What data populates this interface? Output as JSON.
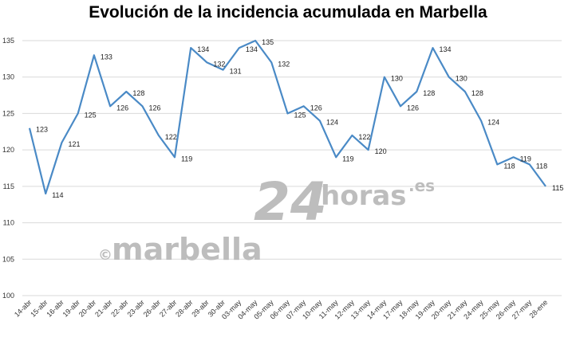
{
  "chart_data": {
    "type": "line",
    "title": "Evolución de la incidencia acumulada en Marbella",
    "xlabel": "",
    "ylabel": "",
    "ylim": [
      100,
      135
    ],
    "yticks": [
      100,
      105,
      110,
      115,
      120,
      125,
      130,
      135
    ],
    "grid": true,
    "legend": "none",
    "line_color": "#4a8ac6",
    "categories": [
      "14-abr",
      "15-abr",
      "16-abr",
      "19-abr",
      "20-abr",
      "21-abr",
      "22-abr",
      "23-abr",
      "26-abr",
      "27-abr",
      "28-abr",
      "29-abr",
      "30-abr",
      "03-may",
      "04-may",
      "05-may",
      "06-may",
      "07-may",
      "10-may",
      "11-may",
      "12-may",
      "13-may",
      "14-may",
      "17-may",
      "18-may",
      "19-may",
      "20-may",
      "21-may",
      "24-may",
      "25-may",
      "26-may",
      "27-may",
      "28-ene"
    ],
    "series": [
      {
        "values": [
          123,
          114,
          121,
          125,
          133,
          126,
          128,
          126,
          122,
          119,
          134,
          132,
          131,
          134,
          135,
          132,
          125,
          126,
          124,
          119,
          122,
          120,
          130,
          126,
          128,
          134,
          130,
          128,
          124,
          118,
          119,
          118,
          115
        ]
      }
    ],
    "label_text": [
      "123",
      "114",
      "121",
      "125",
      "133",
      "126",
      "128",
      "126",
      "122",
      "119",
      "134",
      "132",
      "131",
      "134",
      "135",
      "132",
      "125",
      "126",
      "124",
      "119",
      "122",
      "120",
      "130",
      "126",
      "128",
      "134",
      "130",
      "128",
      "124",
      "118",
      "119",
      "118",
      "115"
    ]
  },
  "watermark": {
    "copyright": "©",
    "brand": "marbella",
    "number": "24",
    "suffix": "horas",
    "domain": ".es"
  }
}
